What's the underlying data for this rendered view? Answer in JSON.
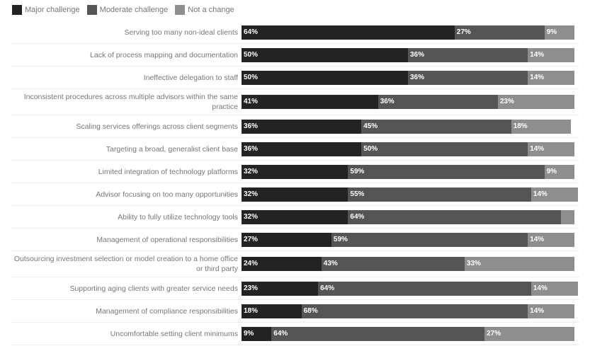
{
  "chart_data": {
    "type": "bar",
    "stacked": true,
    "orientation": "horizontal",
    "legend": [
      {
        "name": "Major challenge",
        "color": "#232323"
      },
      {
        "name": "Moderate challenge",
        "color": "#555555"
      },
      {
        "name": "Not a change",
        "color": "#8e8e8e"
      }
    ],
    "legend_position": "top-left",
    "categories": [
      "Serving too many non-ideal clients",
      "Lack of process mapping and documentation",
      "Ineffective delegation to staff",
      "Inconsistent procedures across multiple advisors within the same practice",
      "Scaling services offerings across client segments",
      "Targeting a broad, generalist client base",
      "Limited integration of technology platforms",
      "Advisor focusing on too many opportunities",
      "Ability to fully utilize technology tools",
      "Management of operational responsibilities",
      "Outsourcing investment selection or model creation to a home office or third party",
      "Supporting aging clients with greater service needs",
      "Management of compliance responsibilities",
      "Uncomfortable setting client minimums"
    ],
    "series": [
      {
        "name": "Major challenge",
        "values": [
          64,
          50,
          50,
          41,
          36,
          36,
          32,
          32,
          32,
          27,
          24,
          23,
          18,
          9
        ]
      },
      {
        "name": "Moderate challenge",
        "values": [
          27,
          36,
          36,
          36,
          45,
          50,
          59,
          55,
          64,
          59,
          43,
          64,
          68,
          64
        ]
      },
      {
        "name": "Not a change",
        "values": [
          9,
          14,
          14,
          23,
          18,
          14,
          9,
          14,
          4,
          14,
          33,
          14,
          14,
          27
        ]
      }
    ],
    "labels_shown": [
      [
        1,
        1,
        1,
        1,
        1,
        1,
        1,
        1,
        1,
        1,
        1,
        1,
        1,
        1
      ],
      [
        1,
        1,
        1,
        1,
        1,
        1,
        1,
        1,
        1,
        1,
        1,
        1,
        1,
        1
      ],
      [
        1,
        1,
        1,
        1,
        1,
        1,
        1,
        1,
        0,
        1,
        1,
        1,
        1,
        1
      ]
    ],
    "unit": "%"
  }
}
